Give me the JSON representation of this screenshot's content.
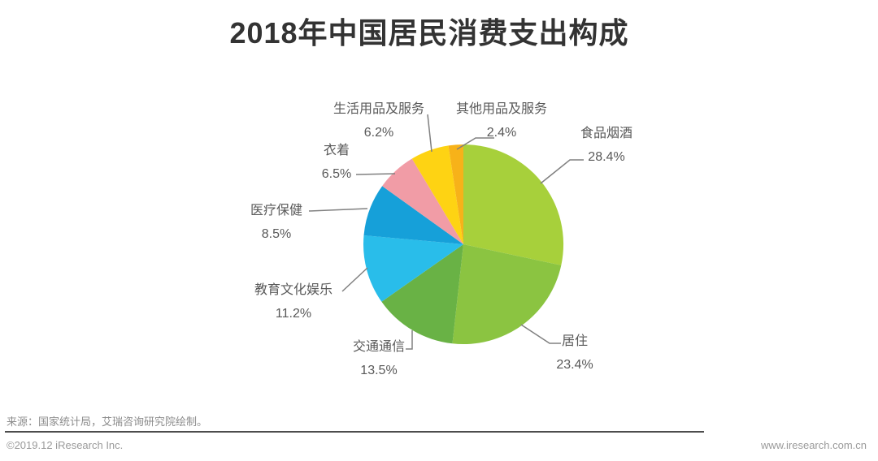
{
  "title": "2018年中国居民消费支出构成",
  "chart_data": {
    "type": "pie",
    "title": "2018年中国居民消费支出构成",
    "unit": "%",
    "start_angle_deg": 0,
    "direction": "clockwise",
    "slices": [
      {
        "label": "食品烟酒",
        "value": 28.4,
        "pct": "28.4%",
        "color": "#a7d03b"
      },
      {
        "label": "居住",
        "value": 23.4,
        "pct": "23.4%",
        "color": "#8bc441"
      },
      {
        "label": "交通通信",
        "value": 13.5,
        "pct": "13.5%",
        "color": "#69b245"
      },
      {
        "label": "教育文化娱乐",
        "value": 11.2,
        "pct": "11.2%",
        "color": "#29bdea"
      },
      {
        "label": "医疗保健",
        "value": 8.5,
        "pct": "8.5%",
        "color": "#16a0d9"
      },
      {
        "label": "衣着",
        "value": 6.5,
        "pct": "6.5%",
        "color": "#f19ca6"
      },
      {
        "label": "生活用品及服务",
        "value": 6.2,
        "pct": "6.2%",
        "color": "#fed313"
      },
      {
        "label": "其他用品及服务",
        "value": 2.4,
        "pct": "2.4%",
        "color": "#f7b219"
      }
    ],
    "leader_line_color": "#808080"
  },
  "footer": {
    "source": "来源：国家统计局，艾瑞咨询研究院绘制。",
    "copyright": "©2019.12 iResearch Inc.",
    "website": "www.iresearch.com.cn"
  }
}
